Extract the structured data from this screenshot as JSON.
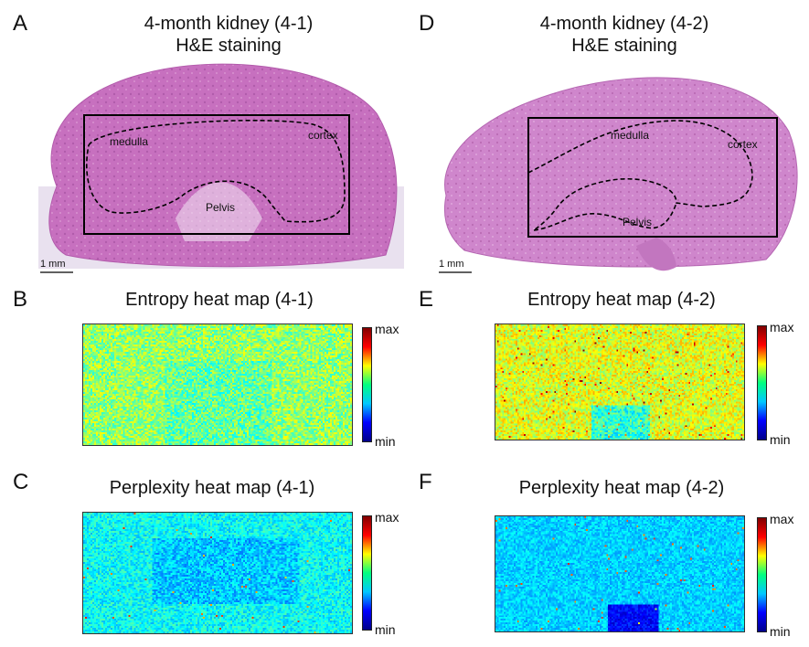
{
  "panels": {
    "A": {
      "letter": "A",
      "title_line1": "4-month kidney (4-1)",
      "title_line2": "H&E staining",
      "scale": "1 mm"
    },
    "D": {
      "letter": "D",
      "title_line1": "4-month kidney (4-2)",
      "title_line2": "H&E staining",
      "scale": "1 mm"
    },
    "B": {
      "letter": "B",
      "title": "Entropy heat map (4-1)"
    },
    "E": {
      "letter": "E",
      "title": "Entropy heat map (4-2)"
    },
    "C": {
      "letter": "C",
      "title": "Perplexity heat map (4-1)"
    },
    "F": {
      "letter": "F",
      "title": "Perplexity heat map (4-2)"
    }
  },
  "regions": {
    "medulla": "medulla",
    "cortex": "cortex",
    "pelvis": "Pelvis"
  },
  "colorbar": {
    "max": "max",
    "min": "min"
  },
  "colors": {
    "tissue": "#c86fc0",
    "tissue_edge": "#b25aab",
    "background_tissue": "#e7dcee"
  }
}
